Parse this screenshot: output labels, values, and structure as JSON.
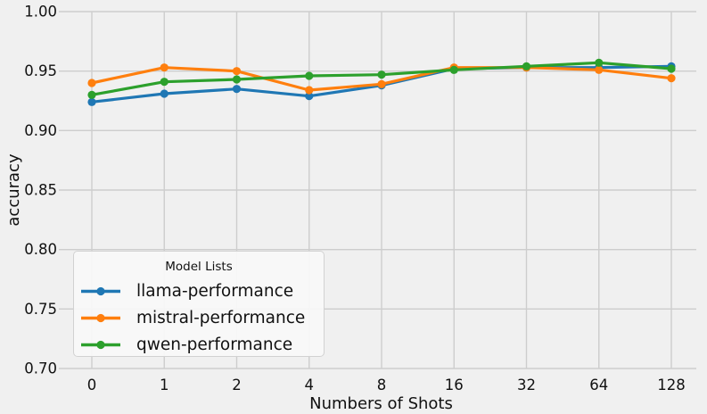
{
  "figure": {
    "background": "#f0f0f0",
    "grid_color": "#cdcdcd",
    "text_color": "#111111"
  },
  "chart_data": {
    "type": "line",
    "title": "",
    "xlabel": "Numbers of Shots",
    "ylabel": "accuracy",
    "categories": [
      "0",
      "1",
      "2",
      "4",
      "8",
      "16",
      "32",
      "64",
      "128"
    ],
    "x_scale": "categorical",
    "ylim": [
      0.7,
      1.0
    ],
    "yticks": [
      0.7,
      0.75,
      0.8,
      0.85,
      0.9,
      0.95,
      1.0
    ],
    "ytick_labels": [
      "0.70",
      "0.75",
      "0.80",
      "0.85",
      "0.90",
      "0.95",
      "1.00"
    ],
    "grid": true,
    "legend": {
      "title": "Model Lists",
      "position": "lower left"
    },
    "series": [
      {
        "name": "llama-performance",
        "color": "#1f77b4",
        "values": [
          0.924,
          0.931,
          0.935,
          0.929,
          0.938,
          0.952,
          0.953,
          0.953,
          0.954
        ]
      },
      {
        "name": "mistral-performance",
        "color": "#ff7f0e",
        "values": [
          0.94,
          0.953,
          0.95,
          0.934,
          0.939,
          0.953,
          0.953,
          0.951,
          0.944
        ]
      },
      {
        "name": "qwen-performance",
        "color": "#2ca02c",
        "values": [
          0.93,
          0.941,
          0.943,
          0.946,
          0.947,
          0.951,
          0.954,
          0.957,
          0.952
        ]
      }
    ]
  }
}
